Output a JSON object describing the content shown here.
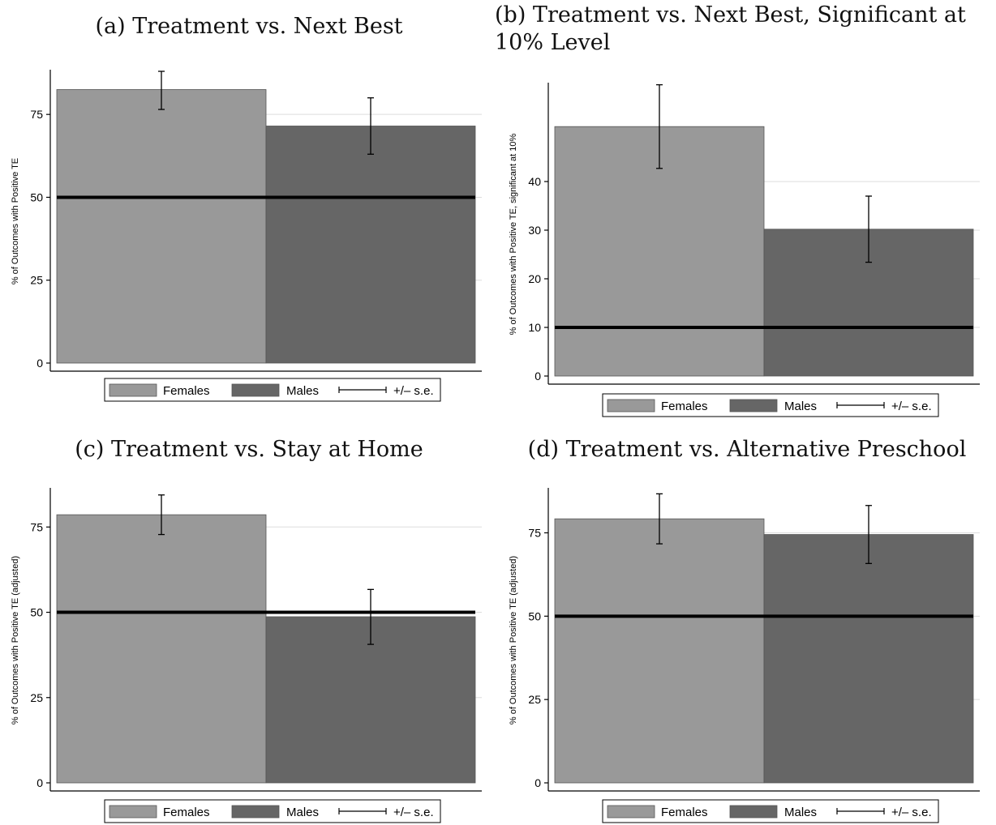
{
  "colors": {
    "females": "#999999",
    "males": "#666666",
    "reference_line": "#000000",
    "grid": "#dddddd"
  },
  "legend": {
    "females": "Females",
    "males": "Males",
    "se": "+/– s.e."
  },
  "chart_data": [
    {
      "type": "bar",
      "title": "(a) Treatment vs. Next Best",
      "ylabel": "% of Outcomes with Positive TE",
      "ylim": [
        0,
        88
      ],
      "yticks": [
        "0",
        "25",
        "50",
        "75"
      ],
      "reference_line": 50,
      "categories": [
        "Females",
        "Males"
      ],
      "values": [
        82.5,
        71.5
      ],
      "error_low": [
        76.5,
        63
      ],
      "error_high": [
        88,
        80
      ],
      "grid": true,
      "legend_position": "bottom"
    },
    {
      "type": "bar",
      "title": "(b) Treatment vs. Next Best, Significant at 10% Level",
      "ylabel": "% of Outcomes with Positive TE, significant at 10%",
      "ylim": [
        0,
        60
      ],
      "yticks": [
        "0",
        "10",
        "20",
        "30",
        "40"
      ],
      "reference_line": 10,
      "categories": [
        "Females",
        "Males"
      ],
      "values": [
        51.3,
        30.2
      ],
      "error_low": [
        42.7,
        23.4
      ],
      "error_high": [
        59.9,
        37
      ],
      "grid": true,
      "legend_position": "bottom"
    },
    {
      "type": "bar",
      "title": "(c) Treatment vs. Stay at Home",
      "ylabel": "% of Outcomes with Positive TE (adjusted)",
      "ylim": [
        0,
        86
      ],
      "yticks": [
        "0",
        "25",
        "50",
        "75"
      ],
      "reference_line": 50,
      "categories": [
        "Females",
        "Males"
      ],
      "values": [
        78.6,
        48.7
      ],
      "error_low": [
        72.8,
        40.6
      ],
      "error_high": [
        84.4,
        56.7
      ],
      "grid": true,
      "legend_position": "bottom"
    },
    {
      "type": "bar",
      "title": "(d) Treatment vs. Alternative Preschool",
      "ylabel": "% of Outcomes with Positive TE (adjusted)",
      "ylim": [
        0,
        88
      ],
      "yticks": [
        "0",
        "25",
        "50",
        "75"
      ],
      "reference_line": 50,
      "categories": [
        "Females",
        "Males"
      ],
      "values": [
        79.2,
        74.5
      ],
      "error_low": [
        71.7,
        65.8
      ],
      "error_high": [
        86.7,
        83.2
      ],
      "grid": true,
      "legend_position": "bottom"
    }
  ]
}
